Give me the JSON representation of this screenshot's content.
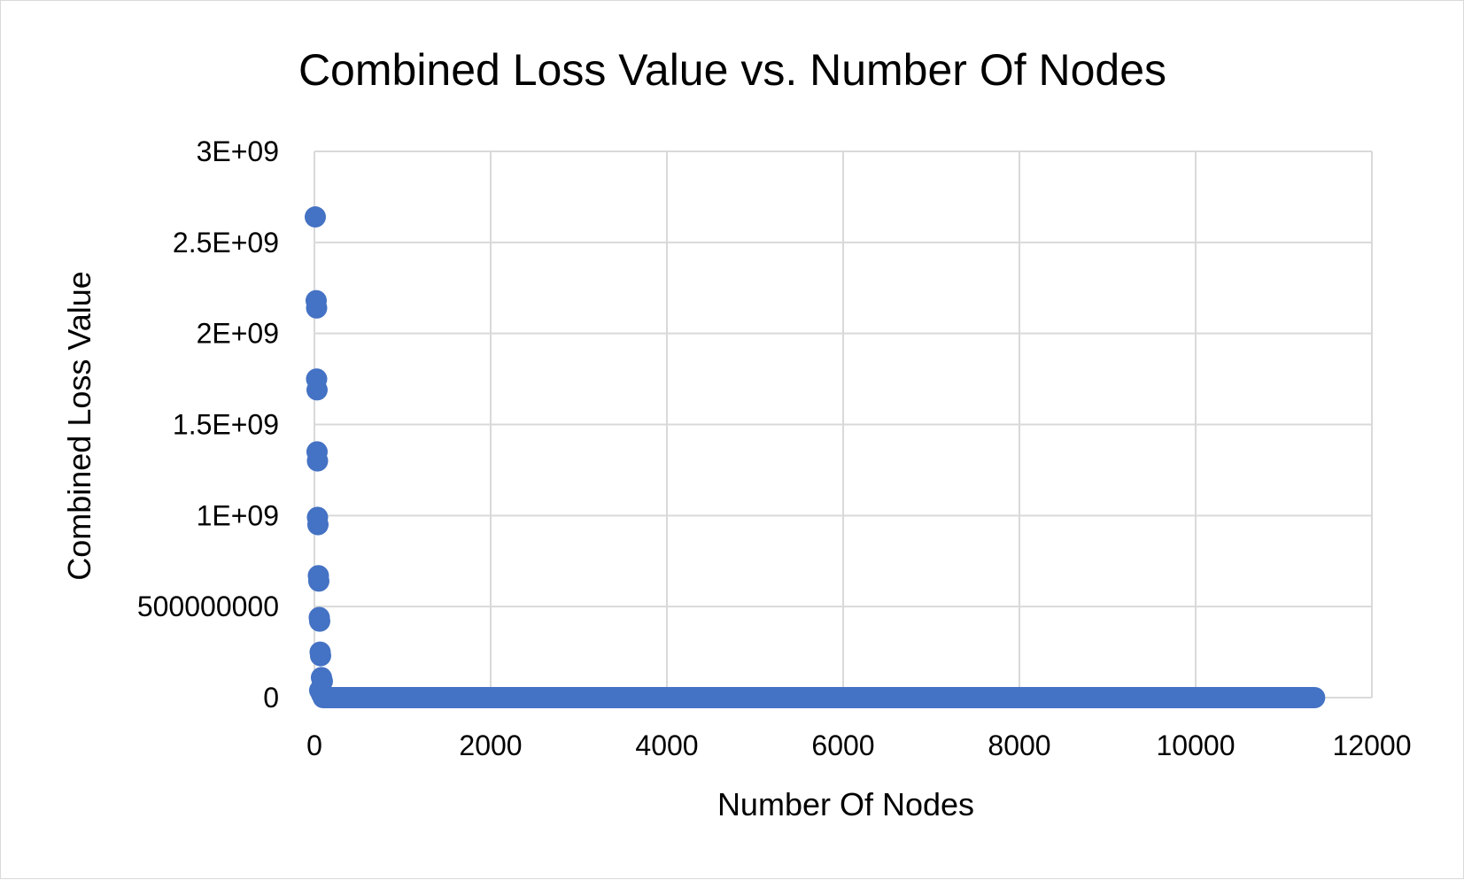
{
  "chart_data": {
    "type": "scatter",
    "title": "Combined Loss Value vs. Number Of Nodes",
    "xlabel": "Number Of Nodes",
    "ylabel": "Combined Loss Value",
    "xlim": [
      0,
      12000
    ],
    "ylim": [
      0,
      3000000000
    ],
    "x_ticks": [
      {
        "value": 0,
        "label": "0"
      },
      {
        "value": 2000,
        "label": "2000"
      },
      {
        "value": 4000,
        "label": "4000"
      },
      {
        "value": 6000,
        "label": "6000"
      },
      {
        "value": 8000,
        "label": "8000"
      },
      {
        "value": 10000,
        "label": "10000"
      },
      {
        "value": 12000,
        "label": "12000"
      }
    ],
    "y_ticks": [
      {
        "value": 0,
        "label": "0"
      },
      {
        "value": 500000000,
        "label": "500000000"
      },
      {
        "value": 1000000000,
        "label": "1E+09"
      },
      {
        "value": 1500000000,
        "label": "1.5E+09"
      },
      {
        "value": 2000000000,
        "label": "2E+09"
      },
      {
        "value": 2500000000,
        "label": "2.5E+09"
      },
      {
        "value": 3000000000,
        "label": "3E+09"
      }
    ],
    "grid": true,
    "legend": "none",
    "series": [
      {
        "color": "#4472c4",
        "points": [
          {
            "x": 10,
            "y": 2640000000
          },
          {
            "x": 20,
            "y": 2180000000
          },
          {
            "x": 25,
            "y": 2140000000
          },
          {
            "x": 25,
            "y": 1750000000
          },
          {
            "x": 30,
            "y": 1690000000
          },
          {
            "x": 30,
            "y": 1350000000
          },
          {
            "x": 35,
            "y": 1300000000
          },
          {
            "x": 35,
            "y": 990000000
          },
          {
            "x": 40,
            "y": 950000000
          },
          {
            "x": 45,
            "y": 670000000
          },
          {
            "x": 50,
            "y": 640000000
          },
          {
            "x": 55,
            "y": 440000000
          },
          {
            "x": 60,
            "y": 420000000
          },
          {
            "x": 65,
            "y": 250000000
          },
          {
            "x": 70,
            "y": 230000000
          },
          {
            "x": 80,
            "y": 110000000
          },
          {
            "x": 90,
            "y": 90000000
          },
          {
            "x": 60,
            "y": 40000000
          },
          {
            "x": 80,
            "y": 20000000
          }
        ],
        "dense_range": {
          "x_start": 100,
          "x_end": 11350,
          "y": 0
        }
      }
    ]
  }
}
